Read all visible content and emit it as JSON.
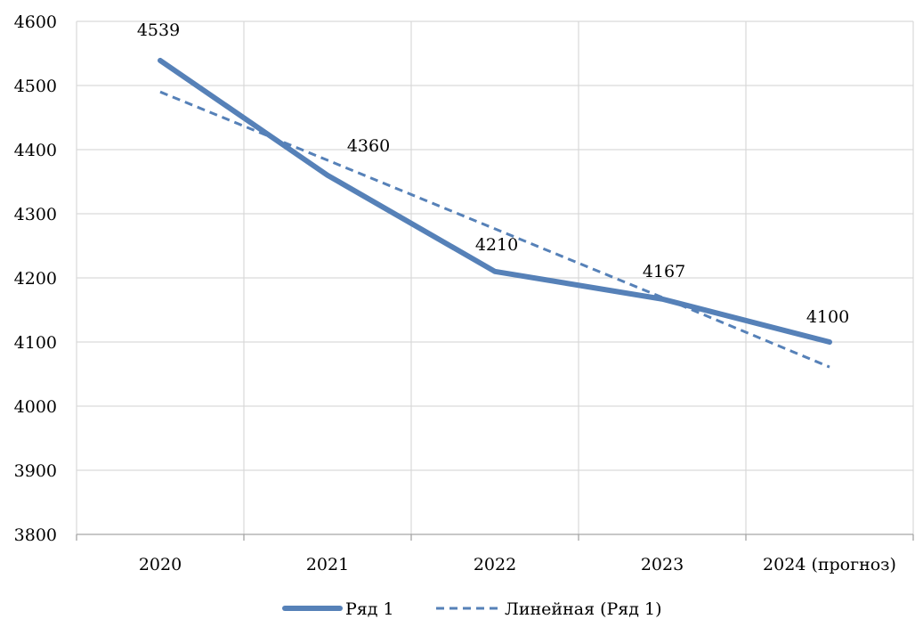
{
  "chart_data": {
    "type": "line",
    "categories": [
      "2020",
      "2021",
      "2022",
      "2023",
      "2024 (прогноз)"
    ],
    "series": [
      {
        "name": "Ряд 1",
        "values": [
          4539,
          4360,
          4210,
          4167,
          4100
        ],
        "data_labels": [
          "4539",
          "4360",
          "4210",
          "4167",
          "4100"
        ],
        "style": "solid"
      },
      {
        "name": "Линейная (Ряд 1)",
        "values": [
          4490,
          4383.5,
          4276.5,
          4169.5,
          4061
        ],
        "style": "dashed",
        "trendline": true
      }
    ],
    "ylim": [
      3800,
      4600
    ],
    "y_ticks": [
      "3800",
      "3900",
      "4000",
      "4100",
      "4200",
      "4300",
      "4400",
      "4500",
      "4600"
    ],
    "grid": true,
    "legend_position": "bottom",
    "title": "",
    "xlabel": "",
    "ylabel": ""
  },
  "colors": {
    "series": "#5681B8",
    "grid": "#D9D9D9",
    "axis": "#A6A6A6"
  },
  "legend": {
    "items": [
      "Ряд 1",
      "Линейная (Ряд 1)"
    ]
  }
}
